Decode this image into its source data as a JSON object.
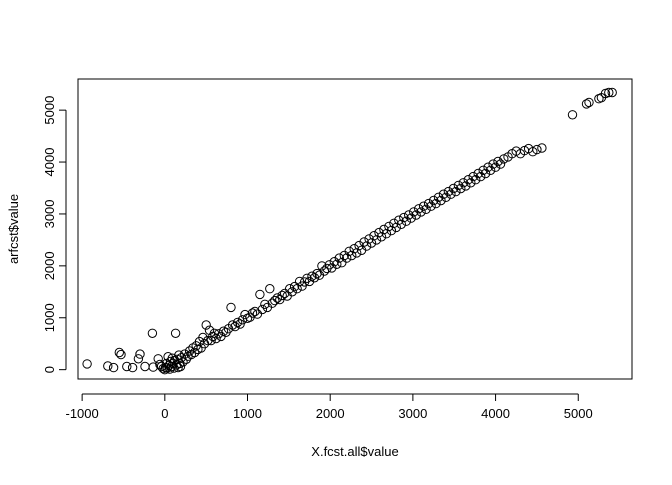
{
  "chart_data": {
    "type": "scatter",
    "title": "",
    "xlabel": "X.fcst.all$value",
    "ylabel": "arfcst$value",
    "xlim": [
      -1050,
      5650
    ],
    "ylim": [
      -180,
      5600
    ],
    "xticks": [
      -1000,
      0,
      1000,
      2000,
      3000,
      4000,
      5000
    ],
    "yticks": [
      0,
      1000,
      2000,
      3000,
      4000,
      5000
    ],
    "x_tick_labels": [
      "-1000",
      "0",
      "1000",
      "2000",
      "3000",
      "4000",
      "5000"
    ],
    "y_tick_labels": [
      "0",
      "1000",
      "2000",
      "3000",
      "4000",
      "5000"
    ],
    "marker": "open-circle",
    "grid": false,
    "legend": "none",
    "series": [
      {
        "points": [
          [
            -940,
            110
          ],
          [
            -690,
            70
          ],
          [
            -620,
            40
          ],
          [
            -550,
            330
          ],
          [
            -530,
            290
          ],
          [
            -460,
            60
          ],
          [
            -390,
            40
          ],
          [
            -320,
            210
          ],
          [
            -300,
            300
          ],
          [
            -240,
            60
          ],
          [
            -150,
            700
          ],
          [
            -140,
            50
          ],
          [
            -80,
            210
          ],
          [
            -60,
            100
          ],
          [
            -40,
            60
          ],
          [
            -20,
            20
          ],
          [
            0,
            0
          ],
          [
            10,
            40
          ],
          [
            20,
            120
          ],
          [
            30,
            30
          ],
          [
            40,
            250
          ],
          [
            50,
            80
          ],
          [
            60,
            10
          ],
          [
            70,
            160
          ],
          [
            80,
            60
          ],
          [
            90,
            220
          ],
          [
            100,
            120
          ],
          [
            110,
            30
          ],
          [
            120,
            180
          ],
          [
            130,
            700
          ],
          [
            140,
            90
          ],
          [
            150,
            200
          ],
          [
            160,
            40
          ],
          [
            170,
            280
          ],
          [
            180,
            120
          ],
          [
            190,
            60
          ],
          [
            200,
            230
          ],
          [
            220,
            150
          ],
          [
            240,
            300
          ],
          [
            260,
            200
          ],
          [
            280,
            260
          ],
          [
            300,
            360
          ],
          [
            320,
            290
          ],
          [
            340,
            420
          ],
          [
            360,
            330
          ],
          [
            380,
            460
          ],
          [
            400,
            390
          ],
          [
            420,
            540
          ],
          [
            440,
            420
          ],
          [
            460,
            620
          ],
          [
            480,
            500
          ],
          [
            500,
            860
          ],
          [
            520,
            560
          ],
          [
            540,
            760
          ],
          [
            560,
            560
          ],
          [
            580,
            640
          ],
          [
            600,
            700
          ],
          [
            620,
            600
          ],
          [
            650,
            690
          ],
          [
            680,
            640
          ],
          [
            710,
            740
          ],
          [
            740,
            720
          ],
          [
            770,
            790
          ],
          [
            800,
            1200
          ],
          [
            820,
            860
          ],
          [
            850,
            830
          ],
          [
            880,
            910
          ],
          [
            910,
            880
          ],
          [
            940,
            960
          ],
          [
            970,
            1060
          ],
          [
            1000,
            990
          ],
          [
            1030,
            1010
          ],
          [
            1060,
            1090
          ],
          [
            1090,
            1120
          ],
          [
            1120,
            1070
          ],
          [
            1150,
            1450
          ],
          [
            1180,
            1160
          ],
          [
            1210,
            1260
          ],
          [
            1240,
            1200
          ],
          [
            1270,
            1560
          ],
          [
            1300,
            1280
          ],
          [
            1330,
            1330
          ],
          [
            1360,
            1380
          ],
          [
            1390,
            1350
          ],
          [
            1420,
            1430
          ],
          [
            1450,
            1470
          ],
          [
            1480,
            1420
          ],
          [
            1510,
            1560
          ],
          [
            1540,
            1500
          ],
          [
            1570,
            1600
          ],
          [
            1600,
            1560
          ],
          [
            1630,
            1700
          ],
          [
            1660,
            1610
          ],
          [
            1690,
            1690
          ],
          [
            1720,
            1760
          ],
          [
            1750,
            1700
          ],
          [
            1780,
            1800
          ],
          [
            1810,
            1770
          ],
          [
            1840,
            1850
          ],
          [
            1870,
            1820
          ],
          [
            1900,
            2000
          ],
          [
            1930,
            1900
          ],
          [
            1960,
            1950
          ],
          [
            1990,
            2020
          ],
          [
            2020,
            1960
          ],
          [
            2050,
            2080
          ],
          [
            2080,
            2030
          ],
          [
            2110,
            2150
          ],
          [
            2140,
            2060
          ],
          [
            2170,
            2200
          ],
          [
            2200,
            2150
          ],
          [
            2230,
            2280
          ],
          [
            2260,
            2200
          ],
          [
            2290,
            2330
          ],
          [
            2320,
            2250
          ],
          [
            2350,
            2390
          ],
          [
            2380,
            2300
          ],
          [
            2410,
            2460
          ],
          [
            2440,
            2380
          ],
          [
            2470,
            2520
          ],
          [
            2500,
            2440
          ],
          [
            2530,
            2580
          ],
          [
            2560,
            2500
          ],
          [
            2590,
            2640
          ],
          [
            2620,
            2560
          ],
          [
            2650,
            2700
          ],
          [
            2680,
            2620
          ],
          [
            2710,
            2760
          ],
          [
            2740,
            2680
          ],
          [
            2770,
            2820
          ],
          [
            2800,
            2740
          ],
          [
            2830,
            2880
          ],
          [
            2860,
            2800
          ],
          [
            2890,
            2930
          ],
          [
            2920,
            2860
          ],
          [
            2950,
            2980
          ],
          [
            2980,
            2920
          ],
          [
            3010,
            3040
          ],
          [
            3040,
            2980
          ],
          [
            3070,
            3100
          ],
          [
            3100,
            3040
          ],
          [
            3130,
            3150
          ],
          [
            3160,
            3090
          ],
          [
            3190,
            3200
          ],
          [
            3220,
            3150
          ],
          [
            3250,
            3260
          ],
          [
            3280,
            3200
          ],
          [
            3310,
            3320
          ],
          [
            3340,
            3260
          ],
          [
            3370,
            3380
          ],
          [
            3400,
            3320
          ],
          [
            3430,
            3430
          ],
          [
            3460,
            3380
          ],
          [
            3490,
            3490
          ],
          [
            3520,
            3430
          ],
          [
            3550,
            3550
          ],
          [
            3580,
            3490
          ],
          [
            3610,
            3600
          ],
          [
            3640,
            3540
          ],
          [
            3670,
            3660
          ],
          [
            3700,
            3600
          ],
          [
            3730,
            3720
          ],
          [
            3760,
            3660
          ],
          [
            3790,
            3780
          ],
          [
            3820,
            3720
          ],
          [
            3850,
            3840
          ],
          [
            3880,
            3780
          ],
          [
            3910,
            3900
          ],
          [
            3940,
            3840
          ],
          [
            3970,
            3960
          ],
          [
            4000,
            3900
          ],
          [
            4030,
            4010
          ],
          [
            4060,
            3960
          ],
          [
            4100,
            4060
          ],
          [
            4150,
            4100
          ],
          [
            4200,
            4160
          ],
          [
            4250,
            4210
          ],
          [
            4300,
            4160
          ],
          [
            4350,
            4220
          ],
          [
            4400,
            4260
          ],
          [
            4450,
            4200
          ],
          [
            4500,
            4240
          ],
          [
            4560,
            4270
          ],
          [
            4930,
            4910
          ],
          [
            5100,
            5120
          ],
          [
            5130,
            5150
          ],
          [
            5250,
            5220
          ],
          [
            5280,
            5240
          ],
          [
            5330,
            5320
          ],
          [
            5370,
            5340
          ],
          [
            5410,
            5340
          ]
        ]
      }
    ]
  }
}
